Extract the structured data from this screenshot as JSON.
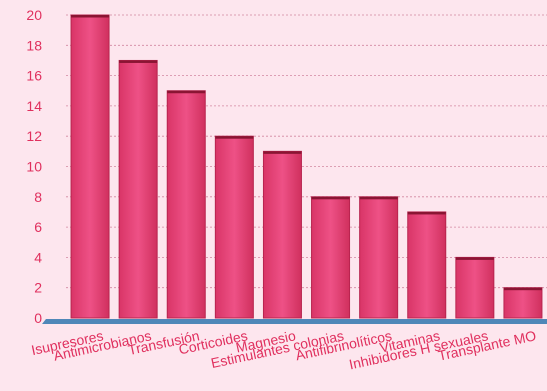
{
  "chart_data": {
    "type": "bar",
    "categories": [
      "Isupresores",
      "Antimicrobianos",
      "Transfusión",
      "Corticoides",
      "Magnesio",
      "Estimulantes colonias",
      "Antifibrinolíticos",
      "Vitaminas",
      "Inhibidores H sexuales",
      "Transplante MO"
    ],
    "values": [
      20,
      17,
      15,
      12,
      11,
      8,
      8,
      7,
      4,
      2
    ],
    "ylim": [
      0,
      20
    ],
    "yticks": [
      "0",
      "2",
      "4",
      "6",
      "8",
      "10",
      "12",
      "14",
      "16",
      "18",
      "20"
    ],
    "grid": true,
    "legend": "none",
    "colors": {
      "background": "#fde6ee",
      "bar": "#e8457a",
      "bar_edge": "#b8244f",
      "bar_top": "#8a1533",
      "axis_floor": "#4f87b8",
      "gridline": "#c06080",
      "label_text": "#e0305e"
    }
  }
}
